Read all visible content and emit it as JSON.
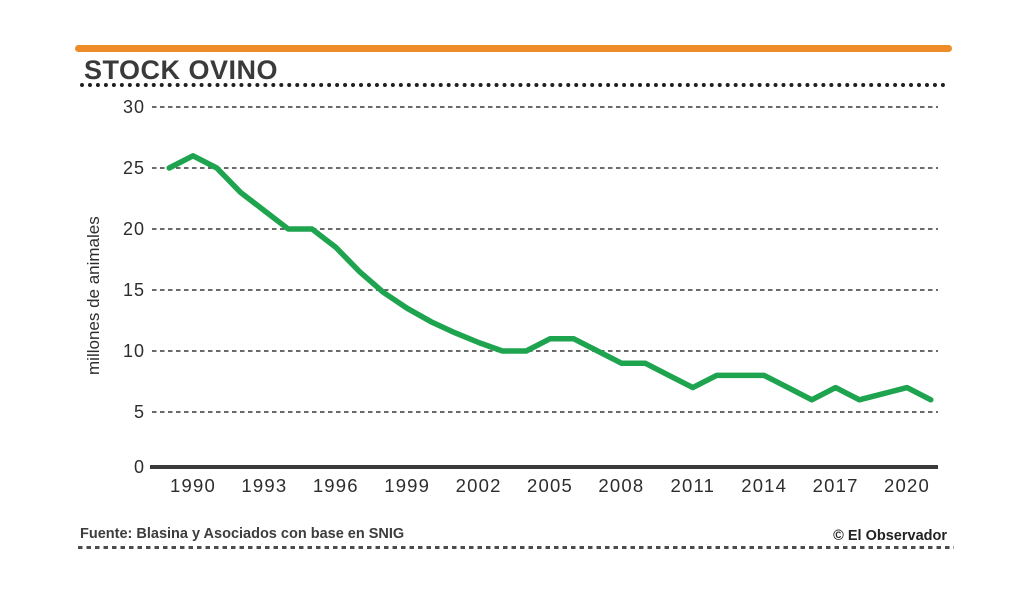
{
  "header": {
    "title": "STOCK OVINO"
  },
  "footer": {
    "source": "Fuente: Blasina y Asociados con base en SNIG",
    "credit": "© El Observador"
  },
  "colors": {
    "accent_orange": "#EE8C28",
    "line_green": "#1EA44F",
    "ink": "#3A3A3A",
    "tick_text": "#2D2D2D",
    "grid": "#555555"
  },
  "chart_data": {
    "type": "line",
    "title": "STOCK OVINO",
    "xlabel": "",
    "ylabel": "millones de animales",
    "x": [
      1989,
      1990,
      1991,
      1992,
      1993,
      1994,
      1995,
      1996,
      1997,
      1998,
      1999,
      2000,
      2001,
      2002,
      2003,
      2004,
      2005,
      2006,
      2007,
      2008,
      2009,
      2010,
      2011,
      2012,
      2013,
      2014,
      2015,
      2016,
      2017,
      2018,
      2019,
      2020,
      2021
    ],
    "series": [
      {
        "name": "Stock ovino (millones de animales)",
        "values": [
          25,
          26,
          25,
          23,
          21.5,
          20,
          20,
          18.5,
          16.5,
          14.8,
          13.5,
          12.4,
          11.5,
          10.7,
          10,
          10,
          11,
          11,
          10,
          9,
          9,
          8,
          7,
          8,
          8,
          8,
          7,
          6,
          7,
          6,
          6.5,
          7,
          6
        ]
      }
    ],
    "y_ticks": [
      0,
      5,
      10,
      15,
      20,
      25,
      30
    ],
    "x_tick_labels": [
      "1990",
      "1993",
      "1996",
      "1999",
      "2002",
      "2005",
      "2008",
      "2011",
      "2014",
      "2017",
      "2020"
    ],
    "ylim": [
      0,
      30
    ],
    "xlim": [
      1988.5,
      2021.5
    ],
    "grid": "horizontal dashed gridlines at y ticks 5-30, solid axis at 0",
    "legend_position": "none"
  }
}
